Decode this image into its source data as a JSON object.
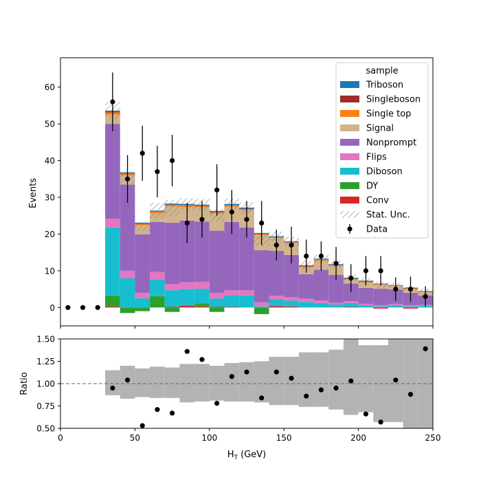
{
  "chart_data": {
    "type": "stacked-bar",
    "xlabel": "H",
    "xlabel_sub": "T",
    "xlabel_unit": " (GeV)",
    "ylabel_main": "Events",
    "ylabel_ratio": "Ratio",
    "xlim": [
      0,
      250
    ],
    "ylim_main": [
      -5,
      68
    ],
    "ylim_ratio": [
      0.5,
      1.5
    ],
    "xticks": [
      "0",
      "50",
      "100",
      "150",
      "200",
      "250"
    ],
    "yticks_main": [
      "0",
      "10",
      "20",
      "30",
      "40",
      "50",
      "60"
    ],
    "yticks_ratio": [
      "0.50",
      "0.75",
      "1.00",
      "1.25",
      "1.50"
    ],
    "bin_edges": [
      30,
      40,
      50,
      60,
      70,
      80,
      90,
      100,
      110,
      120,
      130,
      140,
      150,
      160,
      170,
      180,
      190,
      200,
      210,
      220,
      230,
      240,
      250
    ],
    "series": [
      {
        "name": "Conv",
        "color": "#d62728",
        "values": [
          0.3,
          0,
          0,
          0,
          0.2,
          0.5,
          0.3,
          0.2,
          0.2,
          0,
          0,
          0.4,
          0.3,
          0,
          0,
          0,
          0.2,
          0,
          -0.3,
          0,
          -0.3,
          0
        ]
      },
      {
        "name": "DY",
        "color": "#2ca02c",
        "values": [
          2.9,
          -1.5,
          -1,
          3.1,
          -1.2,
          0,
          0.8,
          -1.2,
          0,
          0,
          -1.8,
          0,
          0,
          0,
          0,
          0,
          0,
          0,
          0,
          0,
          0,
          0
        ]
      },
      {
        "name": "Diboson",
        "color": "#17becf",
        "values": [
          18.6,
          8,
          2.5,
          4.6,
          4.5,
          4.5,
          4,
          2.2,
          3.2,
          3.3,
          0.3,
          1.8,
          1.6,
          1.5,
          1.2,
          0.8,
          1,
          0.6,
          0.3,
          0.6,
          0.3,
          0.4
        ]
      },
      {
        "name": "Flips",
        "color": "#e377c2",
        "values": [
          2.4,
          2,
          1.5,
          2,
          1.7,
          1.9,
          1.9,
          1.6,
          1.3,
          1.4,
          1.1,
          1,
          0.9,
          0.9,
          0.7,
          0.5,
          0.5,
          0.4,
          0.3,
          0.4,
          0.3,
          0.3
        ]
      },
      {
        "name": "Nonprompt",
        "color": "#9467bd",
        "values": [
          25.8,
          23.5,
          15.9,
          13.6,
          16.7,
          16.8,
          16.4,
          16.9,
          18.6,
          17.1,
          14.2,
          12.2,
          11.5,
          6.7,
          8.4,
          7.6,
          4.8,
          4.3,
          4.5,
          3.9,
          3.4,
          2.6
        ]
      },
      {
        "name": "Signal",
        "color": "#d2b48c",
        "values": [
          2.5,
          2.5,
          2.5,
          2.4,
          4.4,
          3.7,
          3.9,
          4.7,
          4.2,
          4.7,
          4.2,
          3.5,
          3.2,
          1.9,
          2.5,
          2.4,
          1.1,
          1.5,
          1.1,
          0.9,
          1.1,
          0.9
        ]
      },
      {
        "name": "Single top",
        "color": "#ff7f0e",
        "values": [
          0.6,
          0.4,
          0.4,
          0.4,
          0.4,
          0.4,
          0.3,
          0.3,
          0.3,
          0.3,
          0.2,
          0.2,
          0.2,
          0.2,
          0.2,
          0.2,
          0.2,
          0.2,
          0.1,
          0.1,
          0.1,
          0.1
        ]
      },
      {
        "name": "Singleboson",
        "color": "#a02c2c",
        "values": [
          0.2,
          0.1,
          0.1,
          0.1,
          0.1,
          0.1,
          0.1,
          0.1,
          0.1,
          0.1,
          0.1,
          0.1,
          0.1,
          0.1,
          0.1,
          0.1,
          0.1,
          0.1,
          0.1,
          0.1,
          0.1,
          0.1
        ]
      },
      {
        "name": "Triboson",
        "color": "#1f77b4",
        "values": [
          0.3,
          0.3,
          0.2,
          0.2,
          0.3,
          0.3,
          0.3,
          0.3,
          0.3,
          0.3,
          0.2,
          0.2,
          0.2,
          0.2,
          0.2,
          0.2,
          0.2,
          0.2,
          0.1,
          0.1,
          0.1,
          0.1
        ]
      }
    ],
    "stat_unc": [
      2.3,
      1.6,
      1.2,
      2.1,
      2.2,
      1.6,
      1.6,
      1.7,
      1.5,
      1.5,
      1.8,
      1.3,
      1.3,
      1.2,
      1.1,
      1,
      0.9,
      0.8,
      0.8,
      0.7,
      0.7,
      0.6
    ],
    "data": {
      "name": "Data",
      "x": [
        5,
        15,
        25,
        35,
        45,
        55,
        65,
        75,
        85,
        95,
        105,
        115,
        125,
        135,
        145,
        155,
        165,
        175,
        185,
        195,
        205,
        215,
        225,
        235,
        245
      ],
      "y": [
        0,
        0,
        0,
        56,
        35,
        42,
        37,
        40,
        23,
        24,
        32,
        26,
        24,
        23,
        17,
        17,
        14,
        14,
        12,
        8,
        10,
        10,
        5,
        5,
        3
      ],
      "err": [
        0,
        0,
        0,
        8,
        6.5,
        7.5,
        7,
        7,
        5.5,
        5,
        7,
        6,
        5,
        6,
        4.2,
        5,
        4.5,
        4,
        4.5,
        3.8,
        4,
        4,
        3.2,
        3.4,
        2.8
      ]
    },
    "ratio": {
      "x": [
        35,
        45,
        55,
        65,
        75,
        85,
        95,
        105,
        115,
        125,
        135,
        145,
        155,
        165,
        175,
        185,
        195,
        205,
        215,
        225,
        235,
        245
      ],
      "y": [
        0.95,
        1.04,
        0.53,
        0.71,
        0.67,
        1.36,
        1.27,
        0.78,
        1.08,
        1.13,
        0.84,
        1.13,
        1.06,
        0.86,
        0.93,
        0.95,
        1.03,
        0.66,
        0.57,
        1.04,
        0.88,
        1.39
      ],
      "band_low": [
        0.87,
        0.83,
        0.85,
        0.84,
        0.84,
        0.79,
        0.8,
        0.81,
        0.8,
        0.8,
        0.79,
        0.76,
        0.76,
        0.74,
        0.74,
        0.71,
        0.65,
        0.68,
        0.57,
        0.57,
        0.5,
        0.5
      ],
      "band_high": [
        1.15,
        1.2,
        1.17,
        1.19,
        1.18,
        1.22,
        1.22,
        1.2,
        1.23,
        1.24,
        1.25,
        1.3,
        1.3,
        1.35,
        1.35,
        1.38,
        1.5,
        1.43,
        1.43,
        1.5,
        1.5,
        1.5
      ]
    },
    "legend": {
      "title": "sample",
      "position": "top-right",
      "entries": [
        {
          "label": "Triboson",
          "kind": "patch",
          "color": "#1f77b4"
        },
        {
          "label": "Singleboson",
          "kind": "patch",
          "color": "#a02c2c"
        },
        {
          "label": "Single top",
          "kind": "patch",
          "color": "#ff7f0e"
        },
        {
          "label": "Signal",
          "kind": "patch",
          "color": "#d2b48c"
        },
        {
          "label": "Nonprompt",
          "kind": "patch",
          "color": "#9467bd"
        },
        {
          "label": "Flips",
          "kind": "patch",
          "color": "#e377c2"
        },
        {
          "label": "Diboson",
          "kind": "patch",
          "color": "#17becf"
        },
        {
          "label": "DY",
          "kind": "patch",
          "color": "#2ca02c"
        },
        {
          "label": "Conv",
          "kind": "patch",
          "color": "#d62728"
        },
        {
          "label": "Stat. Unc.",
          "kind": "hatch",
          "color": "#888888"
        },
        {
          "label": "Data",
          "kind": "errorbar",
          "color": "#000000"
        }
      ]
    }
  }
}
